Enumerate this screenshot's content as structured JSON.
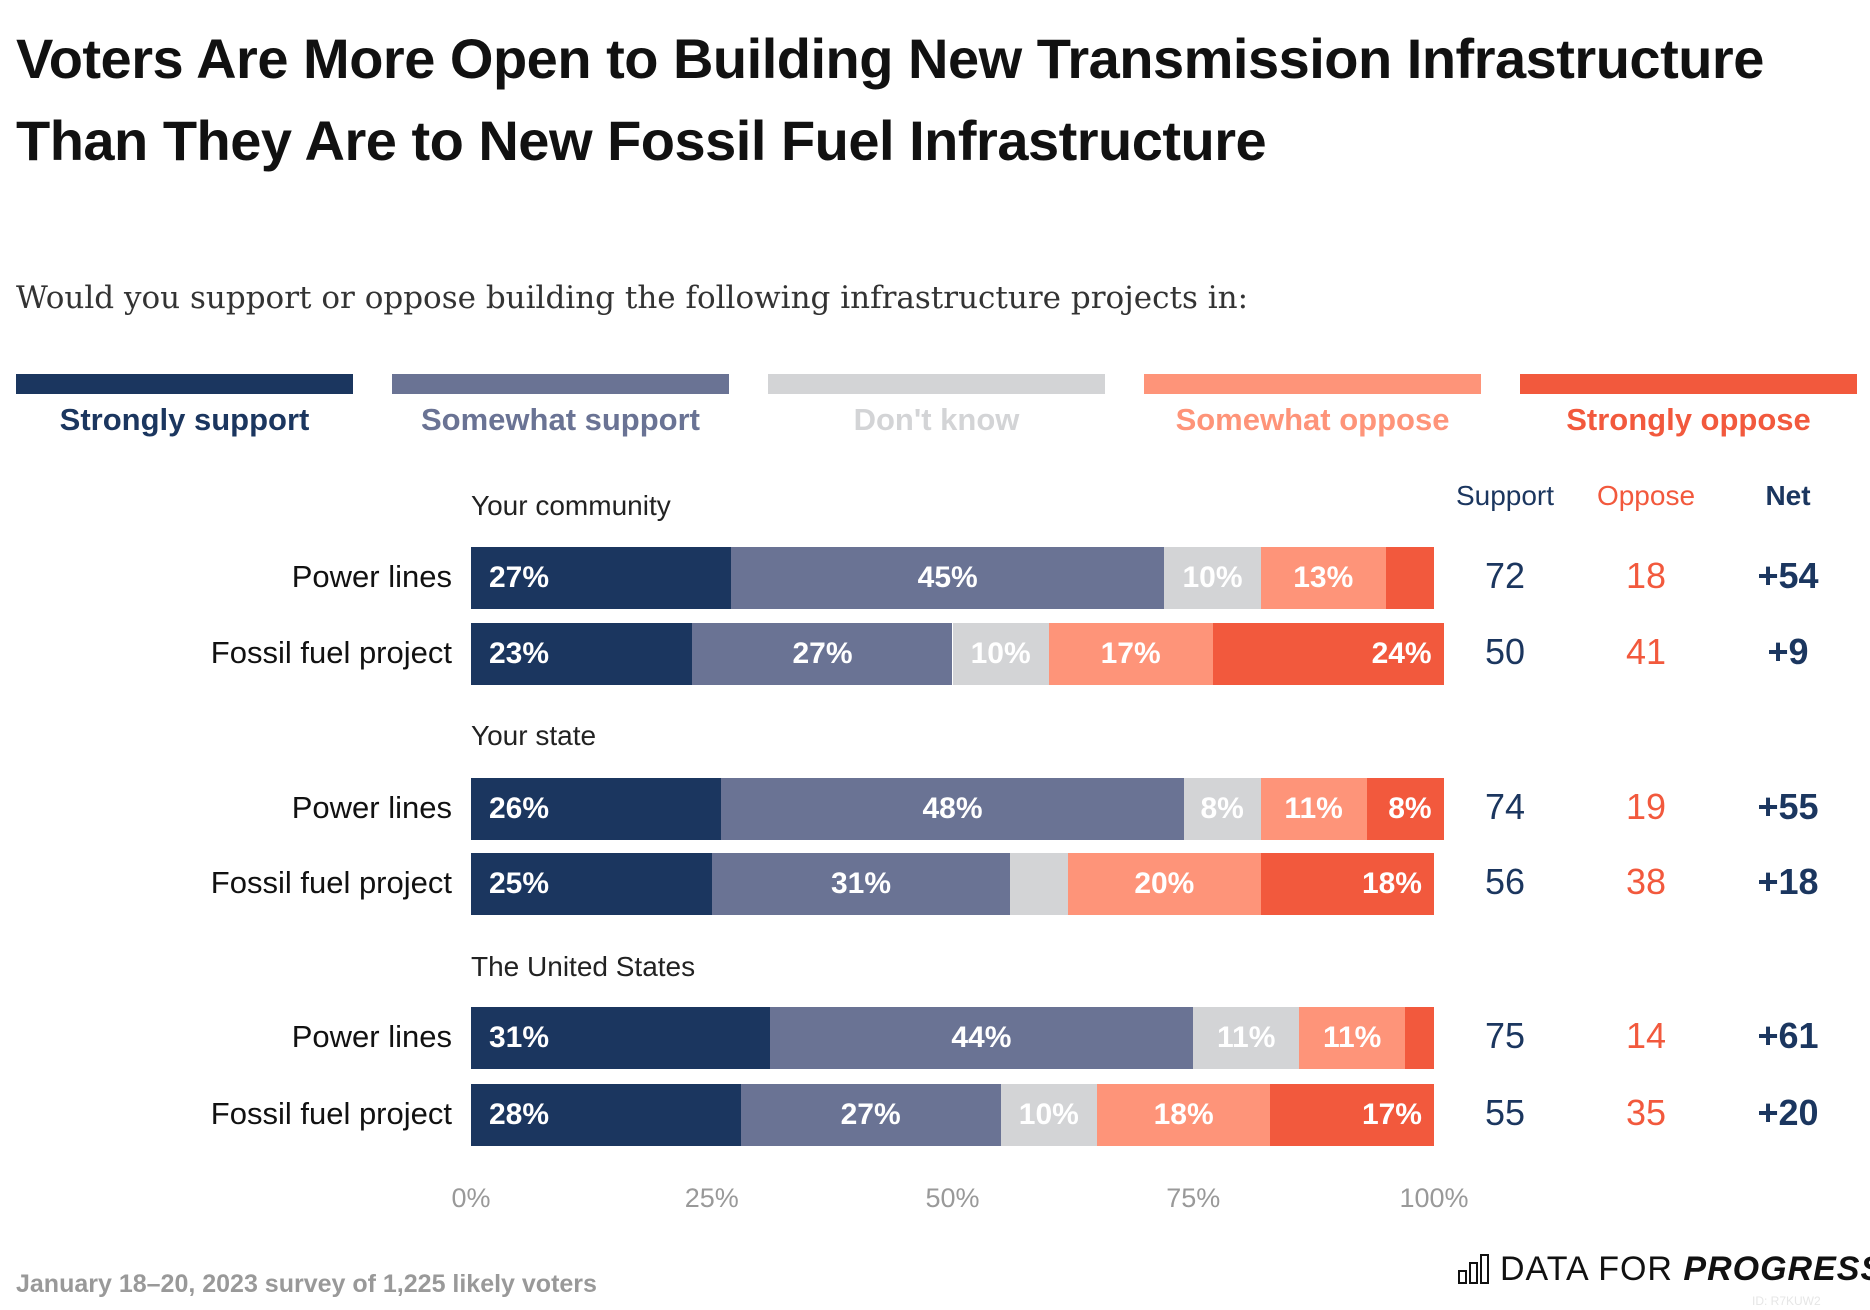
{
  "title": "Voters Are More Open to Building New Transmission Infrastructure Than They Are to New Fossil Fuel Infrastructure",
  "subtitle": "Would you support or oppose building the following infrastructure projects in:",
  "footer": "January 18–20, 2023 survey of 1,225 likely voters",
  "logo": {
    "text_light": "DATA FOR ",
    "text_bold": "PROGRESS",
    "id": "ID: R7KUW2"
  },
  "columns": {
    "support": "Support",
    "oppose": "Oppose",
    "net": "Net"
  },
  "colors": {
    "Strongly support": "#1b365f",
    "Somewhat support": "#6a7394",
    "Don't know": "#d3d4d6",
    "Somewhat oppose": "#fe9479",
    "Strongly oppose": "#f2593d"
  },
  "chart_data": {
    "type": "bar",
    "orientation": "horizontal",
    "stacked": true,
    "xlim": [
      0,
      100
    ],
    "ticks": [
      "0%",
      "25%",
      "50%",
      "75%",
      "100%"
    ],
    "legend": [
      "Strongly support",
      "Somewhat support",
      "Don't know",
      "Somewhat oppose",
      "Strongly oppose"
    ],
    "legend_placement": "top",
    "groups": [
      {
        "label": "Your community",
        "rows": [
          {
            "label": "Power lines",
            "values": [
              27,
              45,
              10,
              13,
              5
            ],
            "support": "72",
            "oppose": "18",
            "net": "+54"
          },
          {
            "label": "Fossil fuel project",
            "values": [
              23,
              27,
              10,
              17,
              24
            ],
            "support": "50",
            "oppose": "41",
            "net": "+9"
          }
        ]
      },
      {
        "label": "Your state",
        "rows": [
          {
            "label": "Power lines",
            "values": [
              26,
              48,
              8,
              11,
              8
            ],
            "support": "74",
            "oppose": "19",
            "net": "+55"
          },
          {
            "label": "Fossil fuel project",
            "values": [
              25,
              31,
              6,
              20,
              18
            ],
            "support": "56",
            "oppose": "38",
            "net": "+18"
          }
        ]
      },
      {
        "label": "The United States",
        "rows": [
          {
            "label": "Power lines",
            "values": [
              31,
              44,
              11,
              11,
              3
            ],
            "support": "75",
            "oppose": "14",
            "net": "+61"
          },
          {
            "label": "Fossil fuel project",
            "values": [
              28,
              27,
              10,
              18,
              17
            ],
            "support": "55",
            "oppose": "35",
            "net": "+20"
          }
        ]
      }
    ]
  }
}
